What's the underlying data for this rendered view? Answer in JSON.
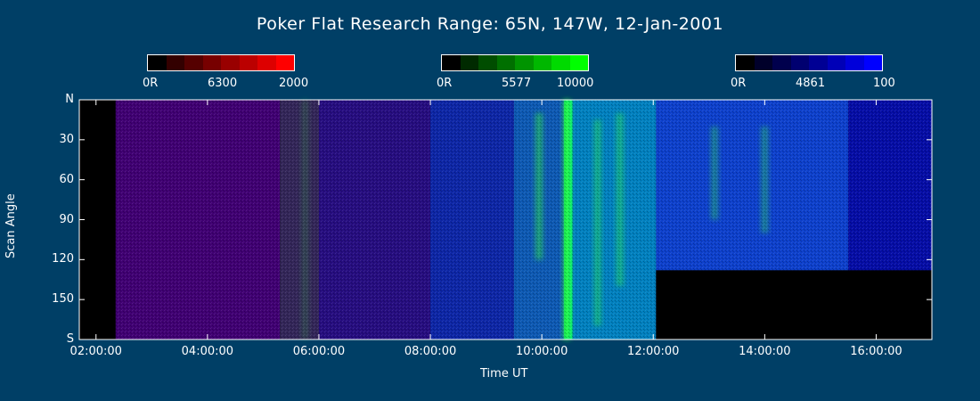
{
  "page": {
    "title": "Poker Flat Research Range: 65N, 147W, 12-Jan-2001",
    "background": "#003f66"
  },
  "colorbars": [
    {
      "name": "red",
      "wavelength": "6300",
      "low_label": "0R",
      "mid_label": "6300",
      "high_label": "2000",
      "colors": [
        "#000000",
        "#330000",
        "#550000",
        "#770000",
        "#990000",
        "#bb0000",
        "#dd0000",
        "#ff0000"
      ]
    },
    {
      "name": "green",
      "wavelength": "5577",
      "low_label": "0R",
      "mid_label": "5577",
      "high_label": "10000",
      "colors": [
        "#000000",
        "#002a00",
        "#004d00",
        "#007000",
        "#009400",
        "#00b700",
        "#00da00",
        "#00ff00"
      ]
    },
    {
      "name": "blue",
      "wavelength": "4861",
      "low_label": "0R",
      "mid_label": "4861",
      "high_label": "100",
      "colors": [
        "#000000",
        "#00002a",
        "#00004d",
        "#000070",
        "#000094",
        "#0000b7",
        "#0000da",
        "#0000ff"
      ]
    }
  ],
  "chart_data": {
    "type": "heatmap",
    "title": "Poker Flat Research Range: 65N, 147W, 12-Jan-2001",
    "xlabel": "Time UT",
    "ylabel": "Scan Angle",
    "xlim": [
      1.7,
      17.0
    ],
    "ylim": [
      0,
      180
    ],
    "y_reversed": true,
    "xticks": [
      {
        "value": 2,
        "label": "02:00:00"
      },
      {
        "value": 4,
        "label": "04:00:00"
      },
      {
        "value": 6,
        "label": "06:00:00"
      },
      {
        "value": 8,
        "label": "08:00:00"
      },
      {
        "value": 10,
        "label": "10:00:00"
      },
      {
        "value": 12,
        "label": "12:00:00"
      },
      {
        "value": 14,
        "label": "14:00:00"
      },
      {
        "value": 16,
        "label": "16:00:00"
      }
    ],
    "yticks": [
      {
        "value": 0,
        "label": "N"
      },
      {
        "value": 30,
        "label": "30"
      },
      {
        "value": 60,
        "label": "60"
      },
      {
        "value": 90,
        "label": "90"
      },
      {
        "value": 120,
        "label": "120"
      },
      {
        "value": 150,
        "label": "150"
      },
      {
        "value": 180,
        "label": "S"
      }
    ],
    "channels": [
      "6300 (red)",
      "5577 (green)",
      "4861 (blue)"
    ],
    "no_data_regions": [
      {
        "x_start": 1.7,
        "x_end": 2.35,
        "y_start": 0,
        "y_end": 180
      },
      {
        "x_start": 12.05,
        "x_end": 17.0,
        "y_start": 128,
        "y_end": 180
      }
    ],
    "segments": [
      {
        "x_start": 2.35,
        "x_end": 5.3,
        "red": 0.25,
        "green": 0.0,
        "blue": 0.45
      },
      {
        "x_start": 5.3,
        "x_end": 6.0,
        "red": 0.2,
        "green": 0.15,
        "blue": 0.35
      },
      {
        "x_start": 6.0,
        "x_end": 8.0,
        "red": 0.15,
        "green": 0.05,
        "blue": 0.5
      },
      {
        "x_start": 8.0,
        "x_end": 9.5,
        "red": 0.05,
        "green": 0.15,
        "blue": 0.65
      },
      {
        "x_start": 9.5,
        "x_end": 10.4,
        "red": 0.05,
        "green": 0.35,
        "blue": 0.7
      },
      {
        "x_start": 10.4,
        "x_end": 10.55,
        "red": 0.0,
        "green": 0.9,
        "blue": 0.5
      },
      {
        "x_start": 10.55,
        "x_end": 12.05,
        "red": 0.0,
        "green": 0.5,
        "blue": 0.75
      },
      {
        "x_start": 12.05,
        "x_end": 15.5,
        "red": 0.05,
        "green": 0.25,
        "blue": 0.8
      },
      {
        "x_start": 15.5,
        "x_end": 17.0,
        "red": 0.02,
        "green": 0.05,
        "blue": 0.65
      }
    ],
    "features": [
      {
        "x": 10.45,
        "y_start": 0,
        "y_end": 180,
        "channel": "green",
        "intensity": 1.0
      },
      {
        "x": 9.95,
        "y_start": 10,
        "y_end": 120,
        "channel": "green",
        "intensity": 0.6
      },
      {
        "x": 11.0,
        "y_start": 15,
        "y_end": 170,
        "channel": "green",
        "intensity": 0.5
      },
      {
        "x": 11.4,
        "y_start": 10,
        "y_end": 140,
        "channel": "green",
        "intensity": 0.5
      },
      {
        "x": 13.1,
        "y_start": 20,
        "y_end": 90,
        "channel": "green",
        "intensity": 0.45
      },
      {
        "x": 14.0,
        "y_start": 20,
        "y_end": 100,
        "channel": "green",
        "intensity": 0.45
      },
      {
        "x": 5.75,
        "y_start": 0,
        "y_end": 180,
        "channel": "green",
        "intensity": 0.2
      }
    ]
  }
}
